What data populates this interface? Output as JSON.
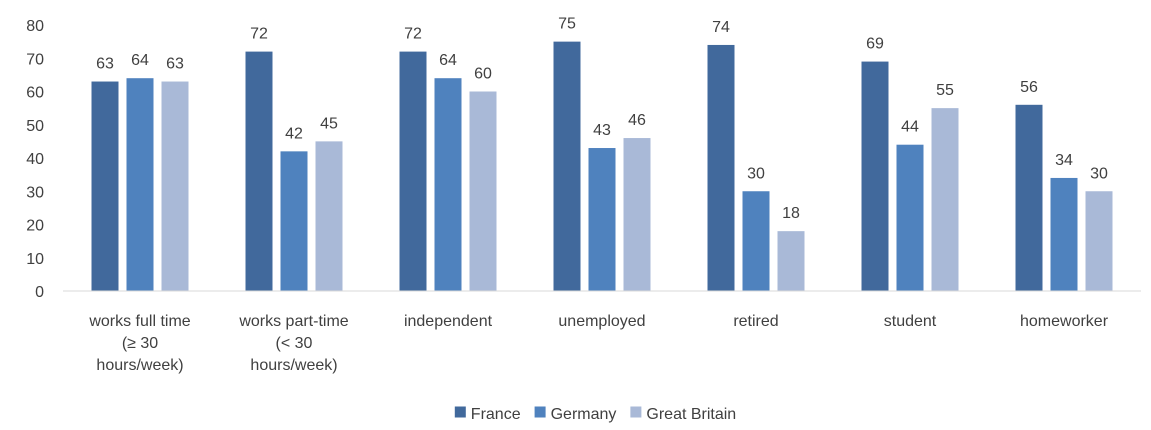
{
  "chart_data": {
    "type": "bar",
    "title": "",
    "xlabel": "",
    "ylabel": "",
    "ylim": [
      0,
      80
    ],
    "yticks": [
      0,
      10,
      20,
      30,
      40,
      50,
      60,
      70,
      80
    ],
    "grid": false,
    "legend_position": "bottom",
    "categories": [
      [
        "works full time",
        "(≥ 30",
        "hours/week)"
      ],
      [
        "works part-time",
        "(< 30",
        "hours/week)"
      ],
      [
        "independent"
      ],
      [
        "unemployed"
      ],
      [
        "retired"
      ],
      [
        "student"
      ],
      [
        "homeworker"
      ]
    ],
    "series": [
      {
        "name": "France",
        "color": "#41699c",
        "values": [
          63,
          72,
          72,
          75,
          74,
          69,
          56
        ]
      },
      {
        "name": "Germany",
        "color": "#4f82be",
        "values": [
          64,
          42,
          64,
          43,
          30,
          44,
          34
        ]
      },
      {
        "name": "Great Britain",
        "color": "#a9b9d7",
        "values": [
          63,
          45,
          60,
          46,
          18,
          55,
          30
        ]
      }
    ]
  }
}
